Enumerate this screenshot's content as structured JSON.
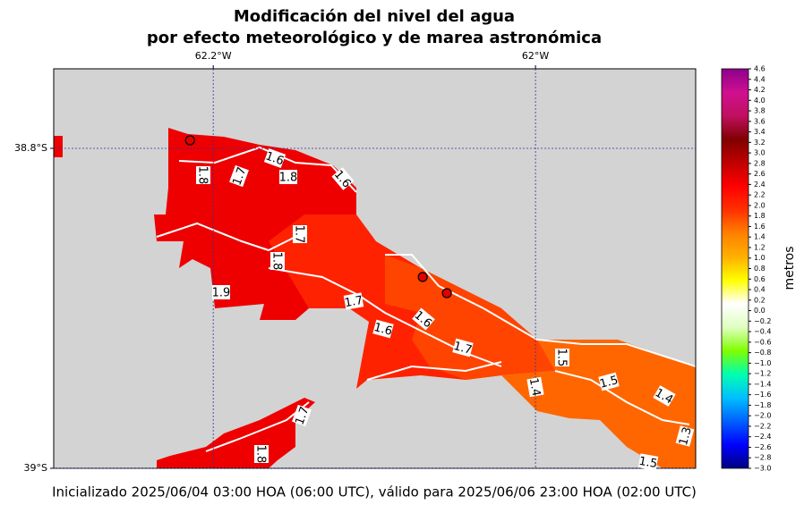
{
  "title": [
    "Modificación del nivel del agua",
    "por efecto meteorológico y de marea astronómica"
  ],
  "footer": "Inicializado 2025/06/04 03:00 HOA (06:00 UTC), válido para 2025/06/06 23:00 HOA (02:00 UTC)",
  "map": {
    "xlim": [
      -62.299,
      -61.9006
    ],
    "ylim": [
      -39.0,
      -38.7503
    ],
    "xticks": [
      {
        "value": -62.2,
        "label": "62.2°W"
      },
      {
        "value": -62,
        "label": "62°W"
      }
    ],
    "yticks": [
      {
        "value": -38.8,
        "label": "38.8°S"
      },
      {
        "value": -39,
        "label": "39°S"
      }
    ],
    "grid": true,
    "stations": {
      "lon": [
        -62.2144,
        -62.07,
        -62.055
      ],
      "lat": [
        -38.795,
        -38.8804,
        -38.8905
      ]
    },
    "contour_labels": [
      1.8,
      1.7,
      1.6,
      1.8,
      1.6,
      1.7,
      1.8,
      1.9,
      1.7,
      1.6,
      1.6,
      1.7,
      1.5,
      1.5,
      1.4,
      1.4,
      1.7,
      1.8,
      1.3,
      1.5
    ]
  },
  "colorbar": {
    "label": "metros",
    "clim": [
      -3.0,
      4.6
    ],
    "colormap": [
      "#000080",
      "#0000ff",
      "#0060ff",
      "#00bfff",
      "#00ffb0",
      "#80ff00",
      "#e0ffc0",
      "#ffffff",
      "#ffff00",
      "#ffb000",
      "#ff8000",
      "#ff3000",
      "#ff0000",
      "#c00000",
      "#800000",
      "#c01060",
      "#d01090",
      "#8b008b"
    ],
    "ticks": [
      {
        "value": -3.0,
        "label": "−3.0"
      },
      {
        "value": -2.8,
        "label": "−2.8"
      },
      {
        "value": -2.6,
        "label": "−2.6"
      },
      {
        "value": -2.4,
        "label": "−2.4"
      },
      {
        "value": -2.2,
        "label": "−2.2"
      },
      {
        "value": -2.0,
        "label": "−2.0"
      },
      {
        "value": -1.8,
        "label": "−1.8"
      },
      {
        "value": -1.6,
        "label": "−1.6"
      },
      {
        "value": -1.4,
        "label": "−1.4"
      },
      {
        "value": -1.2,
        "label": "−1.2"
      },
      {
        "value": -1.0,
        "label": "−1.0"
      },
      {
        "value": -0.8,
        "label": "−0.8"
      },
      {
        "value": -0.6,
        "label": "−0.6"
      },
      {
        "value": -0.4,
        "label": "−0.4"
      },
      {
        "value": -0.2,
        "label": "−0.2"
      },
      {
        "value": 0,
        "label": "0.0"
      },
      0.2,
      0.4,
      0.6,
      0.8,
      {
        "value": 1,
        "label": "1.0"
      },
      1.2,
      1.4,
      1.6,
      1.8,
      {
        "value": 2,
        "label": "2.0"
      },
      2.2,
      2.4,
      2.6,
      2.8,
      {
        "value": 3,
        "label": "3.0"
      },
      3.2,
      3.4,
      3.6,
      3.8,
      {
        "value": 4,
        "label": "4.0"
      },
      4.2,
      4.4,
      4.6
    ]
  }
}
